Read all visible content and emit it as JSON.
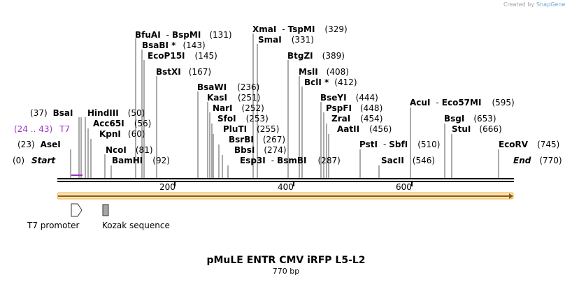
{
  "credit": {
    "prefix": "Created by",
    "brand": "SnapGene"
  },
  "labels": {
    "r0": {
      "pos": "(0)",
      "name": "Start"
    },
    "r1": {
      "pos": "(23)",
      "name": "AseI"
    },
    "r2": {
      "range": "(24 .. 43)",
      "name": "T7"
    },
    "r3": {
      "pos": "(37)",
      "name": "BsaI"
    },
    "hind": {
      "name": "HindIII",
      "pos": "(50)"
    },
    "acc": {
      "name": "Acc65I",
      "pos": "(56)"
    },
    "kpn": {
      "name": "KpnI",
      "pos": "(60)"
    },
    "nco": {
      "name": "NcoI",
      "pos": "(81)"
    },
    "bam": {
      "name": "BamHI",
      "pos": "(92)"
    },
    "bfu": {
      "name": "BfuAI",
      "name2": "BspMI",
      "pos": "(131)"
    },
    "bsab": {
      "name": "BsaBI *",
      "pos": "(143)"
    },
    "eco": {
      "name": "EcoP15I",
      "pos": "(145)"
    },
    "bstx": {
      "name": "BstXI",
      "pos": "(167)"
    },
    "bsaw": {
      "name": "BsaWI",
      "pos": "(236)"
    },
    "kas": {
      "name": "KasI",
      "pos": "(251)"
    },
    "nar": {
      "name": "NarI",
      "pos": "(252)"
    },
    "sfo": {
      "name": "SfoI",
      "pos": "(253)"
    },
    "plu": {
      "name": "PluTI",
      "pos": "(255)"
    },
    "bsrb": {
      "name": "BsrBI",
      "pos": "(267)"
    },
    "bbs": {
      "name": "BbsI",
      "pos": "(274)"
    },
    "esp": {
      "name": "Esp3I",
      "name2": "BsmBI",
      "pos": "(287)"
    },
    "xma": {
      "name": "XmaI",
      "name2": "TspMI",
      "pos": "(329)"
    },
    "sma": {
      "name": "SmaI",
      "pos": "(331)"
    },
    "btg": {
      "name": "BtgZI",
      "pos": "(389)"
    },
    "msl": {
      "name": "MslI",
      "pos": "(408)"
    },
    "bcl": {
      "name": "BclI *",
      "pos": "(412)"
    },
    "bsey": {
      "name": "BseYI",
      "pos": "(444)"
    },
    "psp": {
      "name": "PspFI",
      "pos": "(448)"
    },
    "zra": {
      "name": "ZraI",
      "pos": "(454)"
    },
    "aat": {
      "name": "AatII",
      "pos": "(456)"
    },
    "pst": {
      "name": "PstI",
      "name2": "SbfI",
      "pos": "(510)"
    },
    "sac": {
      "name": "SacII",
      "pos": "(546)"
    },
    "acu": {
      "name": "AcuI",
      "name2": "Eco57MI",
      "pos": "(595)"
    },
    "bsg": {
      "name": "BsgI",
      "pos": "(653)"
    },
    "stu": {
      "name": "StuI",
      "pos": "(666)"
    },
    "ecorv": {
      "name": "EcoRV",
      "pos": "(745)"
    },
    "end": {
      "name": "End",
      "pos": "(770)"
    }
  },
  "axis": {
    "ticks": [
      "200",
      "400",
      "600"
    ]
  },
  "features": {
    "t7": "T7 promoter",
    "kozak": "Kozak sequence"
  },
  "colors": {
    "orf": "#f5c06a",
    "orf_edge": "#8a5a14",
    "primer": "#9b30c8",
    "box": "#a6a6a6"
  },
  "plasmid": {
    "name": "pMuLE ENTR CMV iRFP L5-L2",
    "size": "770 bp"
  }
}
